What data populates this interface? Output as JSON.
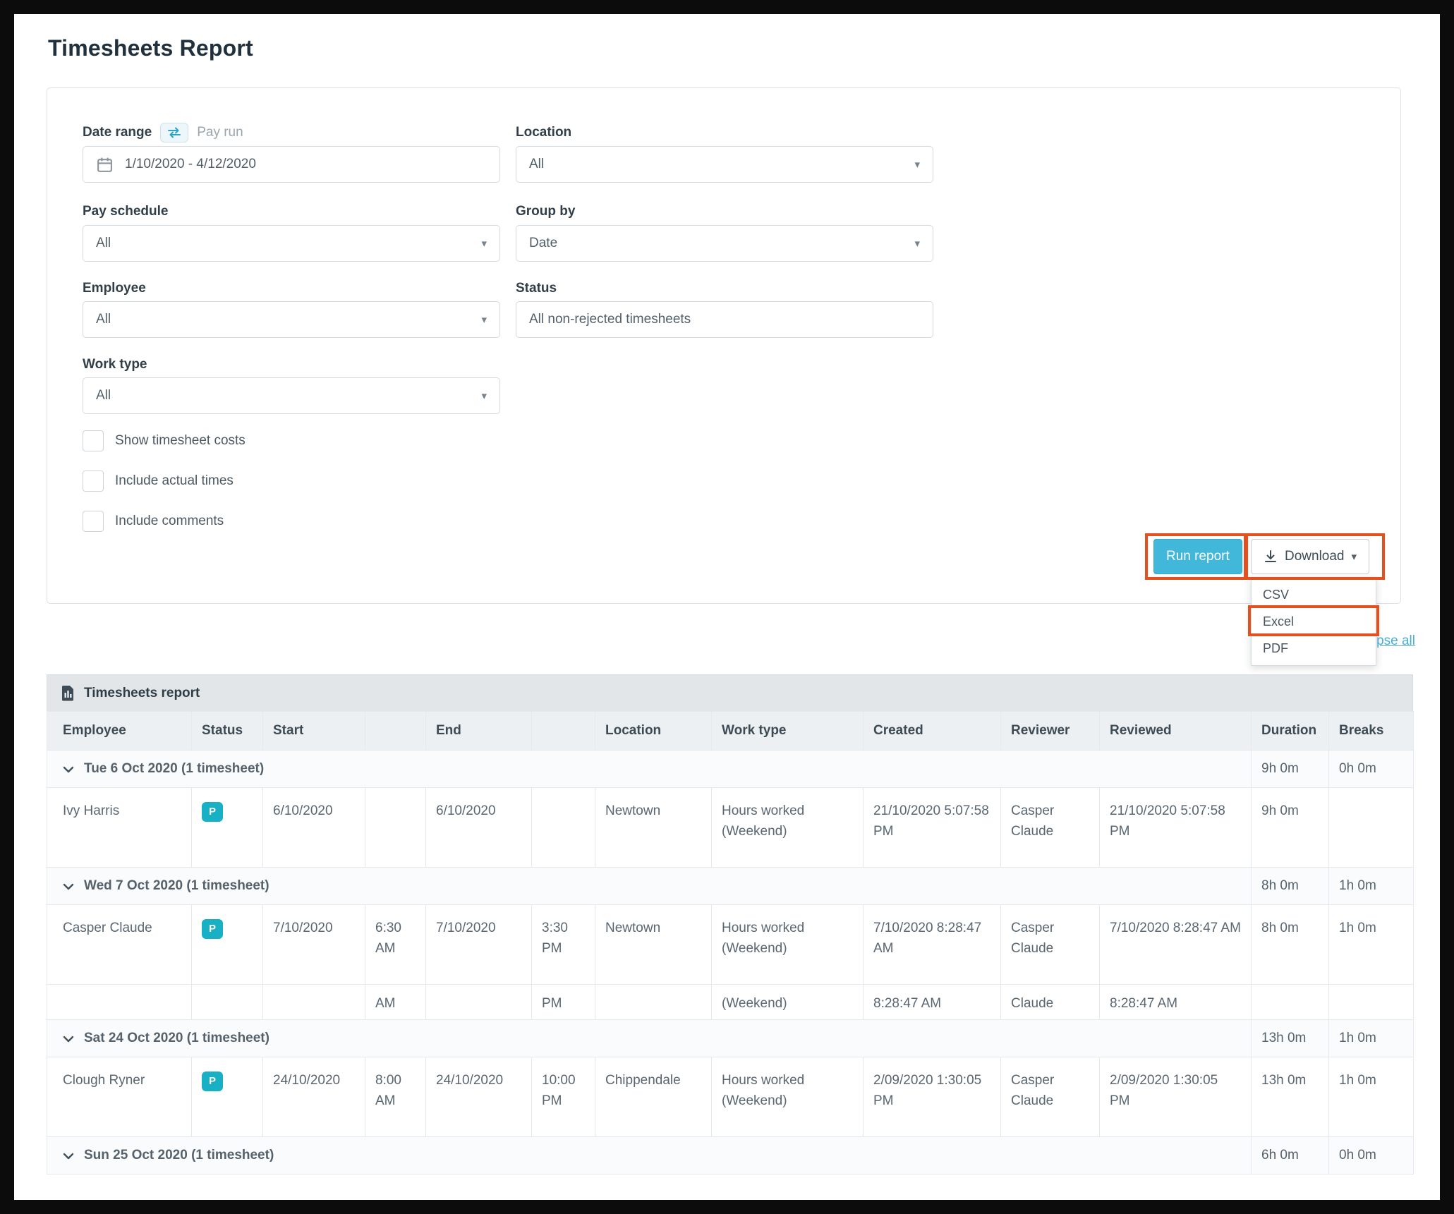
{
  "page": {
    "title": "Timesheets Report"
  },
  "filters": {
    "date_range_label": "Date range",
    "pay_run_label": "Pay run",
    "date_range_value": "1/10/2020 - 4/12/2020",
    "pay_schedule_label": "Pay schedule",
    "pay_schedule_value": "All",
    "employee_label": "Employee",
    "employee_value": "All",
    "work_type_label": "Work type",
    "work_type_value": "All",
    "location_label": "Location",
    "location_value": "All",
    "group_by_label": "Group by",
    "group_by_value": "Date",
    "status_label": "Status",
    "status_value": "All non-rejected timesheets",
    "checkboxes": [
      {
        "label": "Show timesheet costs",
        "checked": false
      },
      {
        "label": "Include actual times",
        "checked": false
      },
      {
        "label": "Include comments",
        "checked": false
      }
    ]
  },
  "actions": {
    "run_report_label": "Run report",
    "download_label": "Download",
    "download_menu": [
      "CSV",
      "Excel",
      "PDF"
    ],
    "collapse_all_label": "Collapse all"
  },
  "icons": {
    "caret_glyph": "▾"
  },
  "colors": {
    "primary_button": "#41b8d9",
    "status_badge": "#17b0c4",
    "annotation_highlight": "#e4511f",
    "link": "#49b0d4"
  },
  "report": {
    "title": "Timesheets report",
    "columns": [
      {
        "label": "Employee"
      },
      {
        "label": "Status"
      },
      {
        "label": "Start"
      },
      {
        "label": ""
      },
      {
        "label": "End"
      },
      {
        "label": ""
      },
      {
        "label": "Location"
      },
      {
        "label": "Work type"
      },
      {
        "label": "Created"
      },
      {
        "label": "Reviewer"
      },
      {
        "label": "Reviewed"
      },
      {
        "label": "Duration"
      },
      {
        "label": "Breaks"
      }
    ],
    "rows": [
      {
        "type": "group",
        "label": "Tue 6 Oct 2020 (1 timesheet)",
        "duration": "9h 0m",
        "breaks": "0h 0m"
      },
      {
        "type": "data",
        "cells": [
          "Ivy Harris",
          "P",
          "6/10/2020",
          "",
          "6/10/2020",
          "",
          "Newtown",
          "Hours worked (Weekend)",
          "21/10/2020 5:07:58 PM",
          "Casper Claude",
          "21/10/2020 5:07:58 PM",
          "9h 0m",
          ""
        ]
      },
      {
        "type": "group",
        "label": "Wed 7 Oct 2020 (1 timesheet)",
        "duration": "8h 0m",
        "breaks": "1h 0m"
      },
      {
        "type": "data",
        "cells": [
          "Casper Claude",
          "P",
          "7/10/2020",
          "6:30 AM",
          "7/10/2020",
          "3:30 PM",
          "Newtown",
          "Hours worked (Weekend)",
          "7/10/2020 8:28:47 AM",
          "Casper Claude",
          "7/10/2020 8:28:47 AM",
          "8h 0m",
          "1h 0m"
        ]
      },
      {
        "type": "data",
        "compact": true,
        "cells": [
          "",
          "",
          "",
          "AM",
          "",
          "PM",
          "",
          "(Weekend)",
          "8:28:47 AM",
          "Claude",
          "8:28:47 AM",
          "",
          ""
        ]
      },
      {
        "type": "group",
        "label": "Sat 24 Oct 2020 (1 timesheet)",
        "duration": "13h 0m",
        "breaks": "1h 0m"
      },
      {
        "type": "data",
        "cells": [
          "Clough Ryner",
          "P",
          "24/10/2020",
          "8:00 AM",
          "24/10/2020",
          "10:00 PM",
          "Chippendale",
          "Hours worked (Weekend)",
          "2/09/2020 1:30:05 PM",
          "Casper Claude",
          "2/09/2020 1:30:05 PM",
          "13h 0m",
          "1h 0m"
        ]
      },
      {
        "type": "group",
        "label": "Sun 25 Oct 2020 (1 timesheet)",
        "duration": "6h 0m",
        "breaks": "0h 0m"
      }
    ]
  }
}
